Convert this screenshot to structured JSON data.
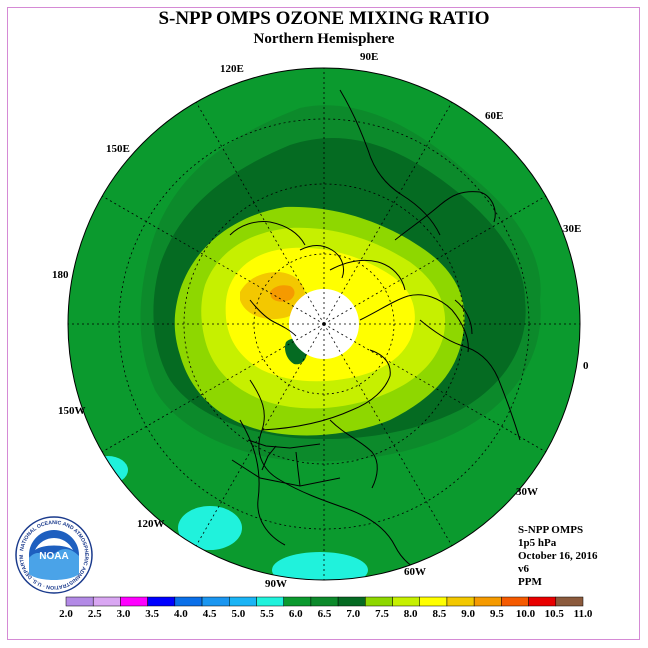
{
  "title": "S-NPP OMPS OZONE MIXING RATIO",
  "subtitle": "Northern Hemisphere",
  "longitude_labels": {
    "lon_90e": "90E",
    "lon_60e": "60E",
    "lon_30e": "30E",
    "lon_0": "0",
    "lon_30w": "30W",
    "lon_60w": "60W",
    "lon_90w": "90W",
    "lon_120w": "120W",
    "lon_150w": "150W",
    "lon_180": "180",
    "lon_150e": "150E",
    "lon_120e": "120E"
  },
  "info": {
    "instrument": "S-NPP OMPS",
    "level": "1p5 hPa",
    "date": "October 16, 2016",
    "version": "v6",
    "units": "PPM"
  },
  "logo": {
    "text": "NOAA",
    "ring_text": "NATIONAL OCEANIC AND ATMOSPHERIC ADMINISTRATION · U.S. DEPARTMENT OF COMMERCE"
  },
  "colorbar": {
    "ticks": [
      "2.0",
      "2.5",
      "3.0",
      "3.5",
      "4.0",
      "4.5",
      "5.0",
      "5.5",
      "6.0",
      "6.5",
      "7.0",
      "7.5",
      "8.0",
      "8.5",
      "9.0",
      "9.5",
      "10.0",
      "10.5",
      "11.0"
    ],
    "colors": [
      "#b38ae6",
      "#d9a6f2",
      "#ff00ff",
      "#0000ff",
      "#0a6fe8",
      "#1a96f0",
      "#1ab4f5",
      "#20f2dc",
      "#0b9a2e",
      "#0c8a2b",
      "#056b22",
      "#8ed700",
      "#c6f000",
      "#ffff00",
      "#f3c800",
      "#f59a00",
      "#f55a00",
      "#e80000",
      "#8b5a3c"
    ]
  }
}
